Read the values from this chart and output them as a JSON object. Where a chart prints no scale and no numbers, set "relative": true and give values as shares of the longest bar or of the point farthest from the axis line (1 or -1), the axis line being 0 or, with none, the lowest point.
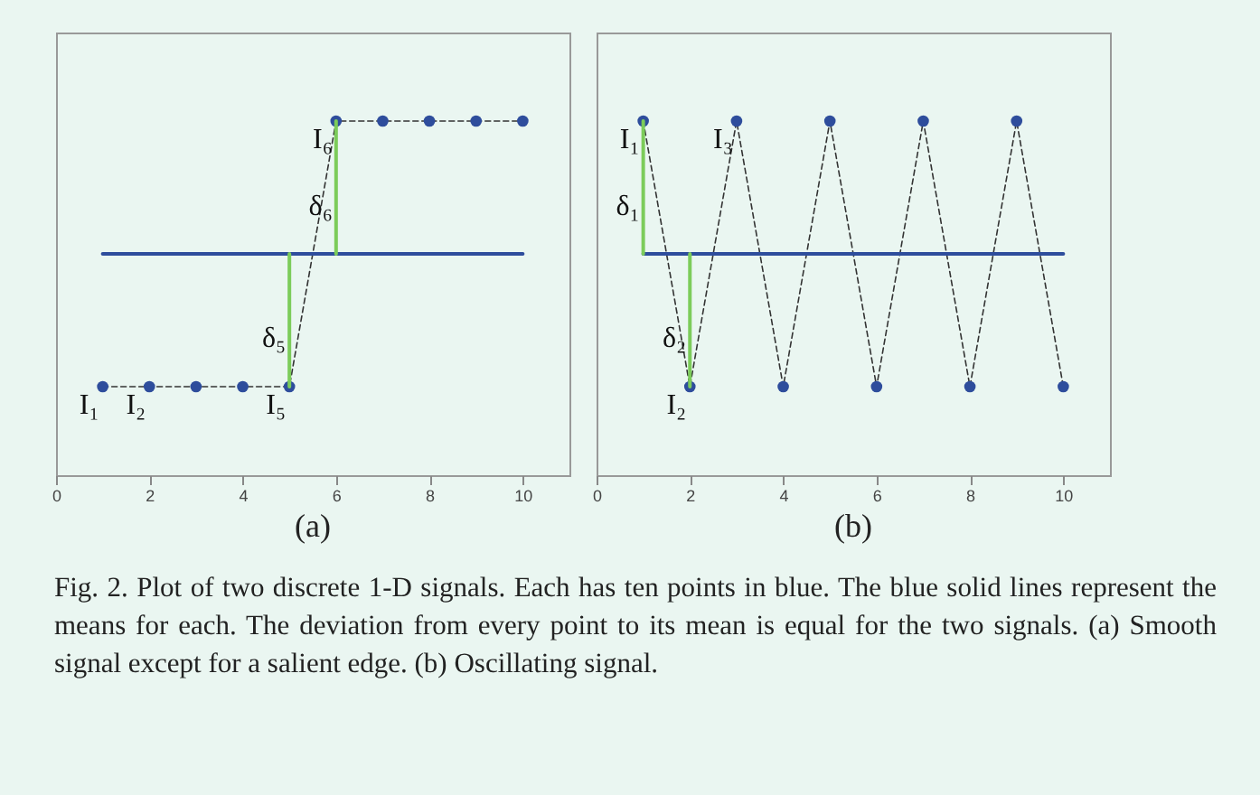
{
  "chart_data": [
    {
      "type": "line",
      "title": "(a)",
      "relative": true,
      "xlim": [
        0,
        11
      ],
      "xticks": [
        0,
        2,
        4,
        6,
        8,
        10
      ],
      "grid": false,
      "series": [
        {
          "type": "line",
          "color": "#333333",
          "line_style": "dashed",
          "x": [
            1,
            2,
            3,
            4,
            5,
            6,
            7,
            8,
            9,
            10
          ],
          "values": [
            0.25,
            0.25,
            0.25,
            0.25,
            0.25,
            1,
            1,
            1,
            1,
            1
          ]
        },
        {
          "type": "scatter",
          "color": "#2e4d9c",
          "marker": "circle",
          "x": [
            1,
            2,
            3,
            4,
            5,
            6,
            7,
            8,
            9,
            10
          ],
          "values": [
            0.25,
            0.25,
            0.25,
            0.25,
            0.25,
            1,
            1,
            1,
            1,
            1
          ]
        },
        {
          "type": "line",
          "color": "#2e4d9c",
          "line_style": "solid",
          "x": [
            1,
            10
          ],
          "values": [
            0.625,
            0.625
          ]
        },
        {
          "type": "line",
          "color": "#7ccc5a",
          "line_style": "solid",
          "x": [
            5,
            5
          ],
          "values": [
            0.25,
            0.625
          ]
        },
        {
          "type": "line",
          "color": "#7ccc5a",
          "line_style": "solid",
          "x": [
            6,
            6
          ],
          "values": [
            1,
            0.625
          ]
        }
      ],
      "annotations": [
        {
          "text": "I₁",
          "x": 1,
          "y": 0.25
        },
        {
          "text": "I₂",
          "x": 2,
          "y": 0.25
        },
        {
          "text": "I₅",
          "x": 5,
          "y": 0.25
        },
        {
          "text": "I₆",
          "x": 6,
          "y": 1
        },
        {
          "text": "δ₅",
          "x": 5,
          "y": 0.44
        },
        {
          "text": "δ₆",
          "x": 6,
          "y": 0.81
        },
        "Fig. 2.    Plot of two discrete 1-D signals. Each has ten points in blue. The blue solid lines represent the means for each. The deviation from every point to its mean is equal for the two signals. (a) Smooth signal except for a salient edge. (b) Oscillating signal."
      ]
    },
    {
      "type": "line",
      "title": "(b)",
      "relative": true,
      "xlim": [
        0,
        11
      ],
      "xticks": [
        0,
        2,
        4,
        6,
        8,
        10
      ],
      "grid": false,
      "series": [
        {
          "type": "line",
          "color": "#333333",
          "line_style": "dashed",
          "x": [
            1,
            2,
            3,
            4,
            5,
            6,
            7,
            8,
            9,
            10
          ],
          "values": [
            1,
            0.25,
            1,
            0.25,
            1,
            0.25,
            1,
            0.25,
            1,
            0.25
          ]
        },
        {
          "type": "scatter",
          "color": "#2e4d9c",
          "marker": "circle",
          "x": [
            1,
            2,
            3,
            4,
            5,
            6,
            7,
            8,
            9,
            10
          ],
          "values": [
            1,
            0.25,
            1,
            0.25,
            1,
            0.25,
            1,
            0.25,
            1,
            0.25
          ]
        },
        {
          "type": "line",
          "color": "#2e4d9c",
          "line_style": "solid",
          "x": [
            1,
            10
          ],
          "values": [
            0.625,
            0.625
          ]
        },
        {
          "type": "line",
          "color": "#7ccc5a",
          "line_style": "solid",
          "x": [
            1,
            1
          ],
          "values": [
            1,
            0.625
          ]
        },
        {
          "type": "line",
          "color": "#7ccc5a",
          "line_style": "solid",
          "x": [
            2,
            2
          ],
          "values": [
            0.25,
            0.625
          ]
        }
      ],
      "annotations": [
        {
          "text": "I₁",
          "x": 1,
          "y": 1
        },
        {
          "text": "I₃",
          "x": 3,
          "y": 1
        },
        {
          "text": "I₂",
          "x": 2,
          "y": 0.25
        },
        {
          "text": "δ₁",
          "x": 1,
          "y": 0.81
        },
        {
          "text": "δ₂",
          "x": 2,
          "y": 0.44
        }
      ]
    }
  ]
}
